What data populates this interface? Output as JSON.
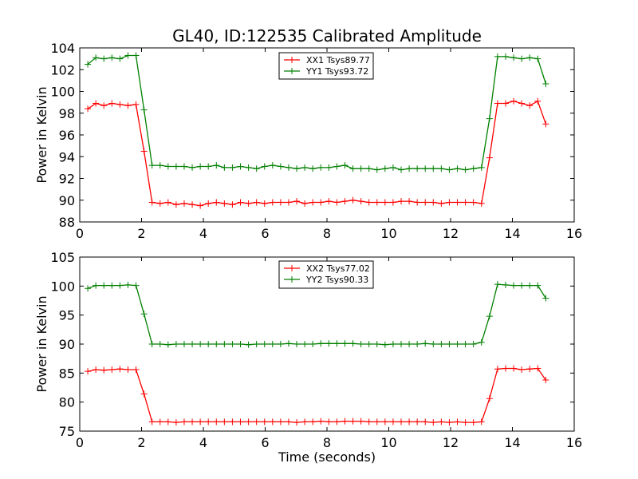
{
  "figure": {
    "title": "GL40, ID:122535 Calibrated Amplitude"
  },
  "chart_data": [
    {
      "type": "line",
      "title": "",
      "xlabel": "",
      "ylabel": "Power in Kelvin",
      "xlim": [
        0,
        16
      ],
      "ylim": [
        88,
        104
      ],
      "xticks": [
        "0",
        "2",
        "4",
        "6",
        "8",
        "10",
        "12",
        "14",
        "16"
      ],
      "yticks": [
        "88",
        "90",
        "92",
        "94",
        "96",
        "98",
        "100",
        "102",
        "104"
      ],
      "grid": false,
      "legend_position": "top-center",
      "x": [
        0.26,
        0.52,
        0.78,
        1.04,
        1.3,
        1.56,
        1.82,
        2.08,
        2.34,
        2.6,
        2.86,
        3.12,
        3.38,
        3.64,
        3.9,
        4.16,
        4.42,
        4.68,
        4.94,
        5.2,
        5.46,
        5.72,
        5.98,
        6.24,
        6.5,
        6.76,
        7.02,
        7.28,
        7.54,
        7.8,
        8.06,
        8.32,
        8.58,
        8.84,
        9.1,
        9.36,
        9.62,
        9.88,
        10.14,
        10.4,
        10.66,
        10.92,
        11.18,
        11.44,
        11.7,
        11.96,
        12.22,
        12.48,
        12.74,
        13.0,
        13.26,
        13.52,
        13.78,
        14.04,
        14.3,
        14.56,
        14.82,
        15.08
      ],
      "series": [
        {
          "name": "XX1 Tsys89.77",
          "color": "#ff0000",
          "values": [
            98.4,
            98.9,
            98.7,
            98.9,
            98.8,
            98.7,
            98.8,
            94.5,
            89.8,
            89.7,
            89.8,
            89.6,
            89.7,
            89.6,
            89.5,
            89.7,
            89.8,
            89.7,
            89.6,
            89.8,
            89.7,
            89.8,
            89.7,
            89.8,
            89.8,
            89.8,
            89.9,
            89.7,
            89.8,
            89.8,
            89.9,
            89.8,
            89.9,
            90.0,
            89.9,
            89.8,
            89.8,
            89.8,
            89.8,
            89.9,
            89.9,
            89.8,
            89.8,
            89.8,
            89.7,
            89.8,
            89.8,
            89.8,
            89.8,
            89.7,
            93.9,
            98.9,
            98.9,
            99.1,
            98.9,
            98.7,
            99.1,
            97.0
          ]
        },
        {
          "name": "YY1 Tsys93.72",
          "color": "#008000",
          "values": [
            102.5,
            103.1,
            103.0,
            103.1,
            103.0,
            103.3,
            103.3,
            98.3,
            93.2,
            93.2,
            93.1,
            93.1,
            93.1,
            93.0,
            93.1,
            93.1,
            93.2,
            93.0,
            93.0,
            93.1,
            93.0,
            92.9,
            93.1,
            93.2,
            93.1,
            93.0,
            92.9,
            93.0,
            92.9,
            93.0,
            93.0,
            93.1,
            93.2,
            92.9,
            92.9,
            92.9,
            92.8,
            92.9,
            93.0,
            92.8,
            92.9,
            92.9,
            92.9,
            92.9,
            92.9,
            92.8,
            92.9,
            92.8,
            92.9,
            93.0,
            97.5,
            103.2,
            103.2,
            103.1,
            103.0,
            103.1,
            103.0,
            100.7
          ]
        }
      ]
    },
    {
      "type": "line",
      "title": "",
      "xlabel": "Time (seconds)",
      "ylabel": "Power in Kelvin",
      "xlim": [
        0,
        16
      ],
      "ylim": [
        75,
        105
      ],
      "xticks": [
        "0",
        "2",
        "4",
        "6",
        "8",
        "10",
        "12",
        "14",
        "16"
      ],
      "yticks": [
        "75",
        "80",
        "85",
        "90",
        "95",
        "100",
        "105"
      ],
      "grid": false,
      "legend_position": "top-center",
      "x": [
        0.26,
        0.52,
        0.78,
        1.04,
        1.3,
        1.56,
        1.82,
        2.08,
        2.34,
        2.6,
        2.86,
        3.12,
        3.38,
        3.64,
        3.9,
        4.16,
        4.42,
        4.68,
        4.94,
        5.2,
        5.46,
        5.72,
        5.98,
        6.24,
        6.5,
        6.76,
        7.02,
        7.28,
        7.54,
        7.8,
        8.06,
        8.32,
        8.58,
        8.84,
        9.1,
        9.36,
        9.62,
        9.88,
        10.14,
        10.4,
        10.66,
        10.92,
        11.18,
        11.44,
        11.7,
        11.96,
        12.22,
        12.48,
        12.74,
        13.0,
        13.26,
        13.52,
        13.78,
        14.04,
        14.3,
        14.56,
        14.82,
        15.08
      ],
      "series": [
        {
          "name": "XX2 Tsys77.02",
          "color": "#ff0000",
          "values": [
            85.3,
            85.6,
            85.5,
            85.6,
            85.7,
            85.6,
            85.6,
            81.4,
            76.6,
            76.6,
            76.6,
            76.5,
            76.6,
            76.6,
            76.6,
            76.6,
            76.6,
            76.6,
            76.6,
            76.6,
            76.6,
            76.6,
            76.6,
            76.6,
            76.6,
            76.6,
            76.5,
            76.6,
            76.6,
            76.7,
            76.6,
            76.6,
            76.7,
            76.7,
            76.7,
            76.6,
            76.6,
            76.6,
            76.6,
            76.6,
            76.6,
            76.6,
            76.6,
            76.5,
            76.6,
            76.5,
            76.6,
            76.5,
            76.5,
            76.6,
            80.6,
            85.7,
            85.8,
            85.8,
            85.6,
            85.7,
            85.8,
            83.8
          ]
        },
        {
          "name": "YY2 Tsys90.33",
          "color": "#008000",
          "values": [
            99.6,
            100.1,
            100.1,
            100.1,
            100.1,
            100.2,
            100.1,
            95.2,
            90.0,
            90.0,
            89.9,
            90.0,
            90.0,
            90.0,
            90.0,
            90.0,
            90.0,
            90.0,
            90.0,
            90.0,
            89.9,
            90.0,
            90.0,
            90.0,
            90.0,
            90.1,
            90.0,
            90.0,
            90.0,
            90.1,
            90.1,
            90.1,
            90.1,
            90.1,
            90.0,
            90.0,
            90.0,
            89.9,
            90.0,
            90.0,
            90.0,
            90.0,
            90.1,
            90.0,
            90.0,
            90.0,
            90.0,
            90.0,
            90.0,
            90.3,
            94.8,
            100.3,
            100.2,
            100.1,
            100.1,
            100.1,
            100.1,
            97.9
          ]
        }
      ]
    }
  ]
}
